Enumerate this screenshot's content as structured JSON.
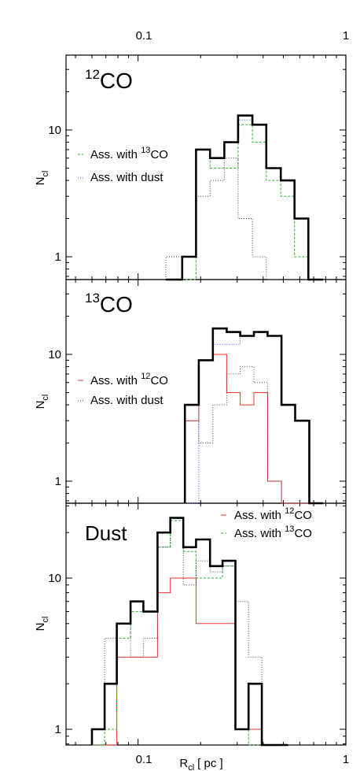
{
  "figure": {
    "top_axis_ticks": [
      "0.1",
      "1"
    ],
    "bottom_axis_ticks": [
      "0.1",
      "1"
    ],
    "xlabel_main": "R",
    "xlabel_sub": "cl",
    "xlabel_unit": "[ pc ]"
  },
  "panels": [
    {
      "title_sup": "12",
      "title_main": "CO",
      "ylabel_main": "N",
      "ylabel_sub": "cl",
      "yticks": [
        "10",
        "1"
      ],
      "legend": [
        {
          "prefix": "Ass. with ",
          "sup": "13",
          "suffix": "CO",
          "color": "#22bb22"
        },
        {
          "prefix": "Ass. with dust",
          "sup": "",
          "suffix": "",
          "color": "#3344dd"
        }
      ]
    },
    {
      "title_sup": "13",
      "title_main": "CO",
      "ylabel_main": "N",
      "ylabel_sub": "cl",
      "yticks": [
        "10",
        "1"
      ],
      "legend": [
        {
          "prefix": "Ass. with ",
          "sup": "12",
          "suffix": "CO",
          "color": "#ee3333"
        },
        {
          "prefix": "Ass. with dust",
          "sup": "",
          "suffix": "",
          "color": "#444444"
        }
      ]
    },
    {
      "title_sup": "",
      "title_main": "Dust",
      "ylabel_main": "N",
      "ylabel_sub": "cl",
      "yticks": [
        "10",
        "1"
      ],
      "legend": [
        {
          "prefix": "Ass. with ",
          "sup": "12",
          "suffix": "CO",
          "color": "#ee3333"
        },
        {
          "prefix": "Ass. with ",
          "sup": "13",
          "suffix": "CO",
          "color": "#22bb22"
        }
      ]
    }
  ],
  "chart_data": [
    {
      "type": "histogram",
      "title": "12CO",
      "xscale": "log",
      "yscale": "log",
      "xlim": [
        0.045,
        1.0
      ],
      "ylim": [
        0.7,
        40
      ],
      "xlabel": "R_cl [ pc ]",
      "ylabel": "N_cl",
      "bin_edges": [
        0.136,
        0.163,
        0.19,
        0.222,
        0.26,
        0.303,
        0.355,
        0.414,
        0.486,
        0.566,
        0.66,
        0.777
      ],
      "series": [
        {
          "name": "",
          "color": "#000000",
          "style": "solid-thick",
          "values": [
            0.7,
            1,
            7,
            6,
            8,
            13,
            11,
            5,
            4,
            2,
            0.7
          ]
        },
        {
          "name": "Ass. with 13CO",
          "color": "#22bb22",
          "style": "dashed",
          "values": [
            0.7,
            0.7,
            7,
            5,
            5,
            11,
            8,
            4,
            3,
            1,
            0.7
          ]
        },
        {
          "name": "Ass. with dust",
          "color": "#3344dd",
          "style": "dotted",
          "values": [
            0.7,
            1,
            7,
            6,
            8,
            12,
            11,
            5,
            4,
            2,
            0.7
          ]
        },
        {
          "name": "",
          "color": "#444444",
          "style": "dotted",
          "values": [
            1,
            1,
            3,
            4,
            6,
            2,
            1,
            0.7,
            0.7,
            0.7,
            0.7
          ]
        }
      ]
    },
    {
      "type": "histogram",
      "title": "13CO",
      "xscale": "log",
      "yscale": "log",
      "xlim": [
        0.045,
        1.0
      ],
      "ylim": [
        0.7,
        35
      ],
      "xlabel": "R_cl [ pc ]",
      "ylabel": "N_cl",
      "bin_edges": [
        0.168,
        0.196,
        0.229,
        0.267,
        0.31,
        0.361,
        0.42,
        0.49,
        0.57,
        0.667,
        0.777
      ],
      "series": [
        {
          "name": "",
          "color": "#000000",
          "style": "solid-thick",
          "values": [
            4,
            9,
            16,
            15,
            14,
            15,
            14,
            4,
            3,
            0.7
          ]
        },
        {
          "name": "Ass. with 12CO",
          "color": "#ee3333",
          "style": "solid",
          "values": [
            3,
            9,
            10,
            5,
            4,
            5,
            1,
            0.7,
            0.7,
            0.7
          ]
        },
        {
          "name": "Ass. with dust",
          "color": "#444444",
          "style": "dotted",
          "values": [
            3,
            2,
            4,
            7,
            8,
            6,
            1,
            0.7,
            0.7,
            0.7
          ]
        },
        {
          "name": "",
          "color": "#3344dd",
          "style": "dotted",
          "values": [
            0.7,
            9,
            12,
            12,
            14,
            15,
            14,
            4,
            3,
            0.7
          ]
        }
      ]
    },
    {
      "type": "histogram",
      "title": "Dust",
      "xscale": "log",
      "yscale": "log",
      "xlim": [
        0.045,
        1.0
      ],
      "ylim": [
        0.7,
        35
      ],
      "xlabel": "R_cl [ pc ]",
      "ylabel": "N_cl",
      "bin_edges": [
        0.06,
        0.069,
        0.079,
        0.092,
        0.106,
        0.124,
        0.143,
        0.165,
        0.19,
        0.222,
        0.255,
        0.294,
        0.34,
        0.394,
        0.456,
        0.527
      ],
      "series": [
        {
          "name": "",
          "color": "#000000",
          "style": "solid-thick",
          "values": [
            1,
            2,
            5,
            7,
            6,
            20,
            25,
            16,
            18,
            12,
            13,
            1,
            2,
            0.7,
            0.7
          ]
        },
        {
          "name": "Ass. with 12CO",
          "color": "#ee3333",
          "style": "solid",
          "values": [
            0.7,
            0.7,
            3,
            3,
            3,
            8,
            10,
            10,
            5,
            5,
            5,
            1,
            1,
            0.7,
            0.7
          ]
        },
        {
          "name": "Ass. with 13CO",
          "color": "#22bb22",
          "style": "dashed",
          "values": [
            0.7,
            1,
            4,
            6,
            6,
            16,
            24,
            15,
            10,
            10,
            12,
            1,
            0.7,
            0.7,
            0.7
          ]
        },
        {
          "name": "",
          "color": "#444444",
          "style": "dotted",
          "values": [
            1,
            4,
            5,
            3,
            4,
            16,
            25,
            9,
            13,
            11,
            12,
            7,
            3,
            0.7,
            0.7
          ]
        }
      ]
    }
  ]
}
